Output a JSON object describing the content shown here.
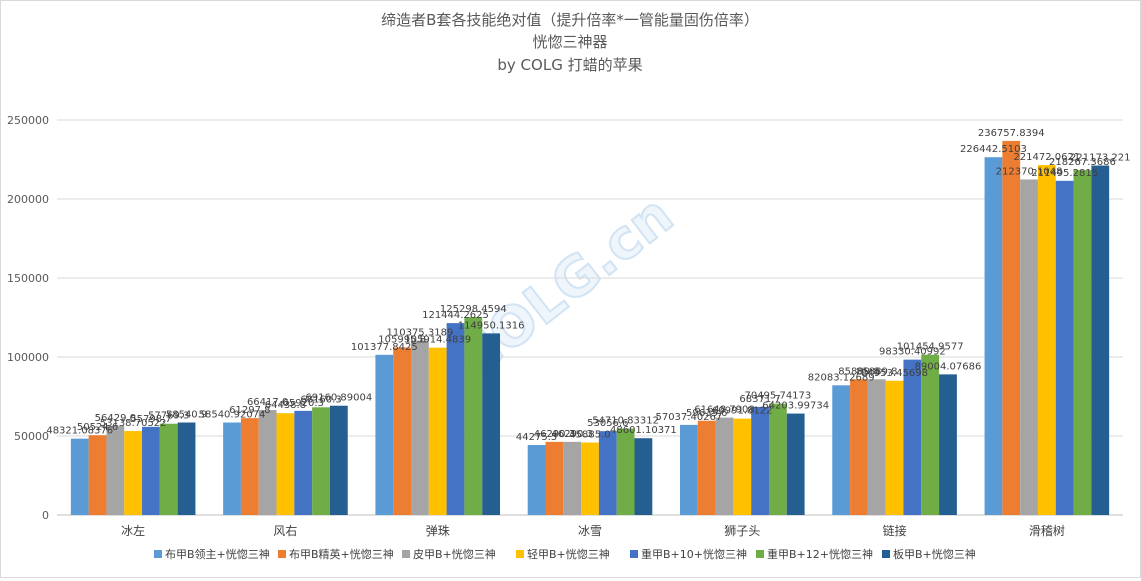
{
  "chart_data": {
    "type": "bar",
    "title_lines": [
      "缔造者B套各技能绝对值（提升倍率*一管能量固伤倍率）",
      "恍惚三神器",
      "by COLG 打蜡的苹果"
    ],
    "categories": [
      "冰左",
      "风右",
      "弹珠",
      "冰雪",
      "狮子头",
      "链接",
      "滑稽树"
    ],
    "ylim": [
      0,
      250000
    ],
    "yticks": [
      0,
      50000,
      100000,
      150000,
      200000,
      250000
    ],
    "ytick_labels": [
      "0",
      "50000",
      "100000",
      "150000",
      "200000",
      "250000"
    ],
    "grid": true,
    "legend_position": "bottom",
    "series": [
      {
        "name": "布甲B领主+恍惚三神",
        "color": "#5b9bd5",
        "values": [
          48321.0,
          58540.9207,
          101377.8425,
          44275.5,
          57037.40267,
          82083.12689,
          226442.5103
        ],
        "labels": [
          "48321.08376",
          "58540.92074",
          "101377.8425",
          "44275.5",
          "57037.40267",
          "82083.12689",
          "226442.5103"
        ]
      },
      {
        "name": "布甲B精英+恍惚三神",
        "color": "#ed7d31",
        "values": [
          50524.6,
          61297.8,
          105995.8,
          46290.3,
          59635.6,
          85889.8,
          236757.8394
        ],
        "labels": [
          "50524.6",
          "61297.8",
          "105995.8",
          "46290.3",
          "59635.6",
          "85889.8",
          "236757.8394"
        ]
      },
      {
        "name": "皮甲B+恍惚三神",
        "color": "#a5a5a5",
        "values": [
          56429.0,
          66417.0,
          110375.3189,
          46290.3,
          61648.7908,
          85889.8,
          212370.1048
        ],
        "labels": [
          "56429.0",
          "66417.0",
          "110375.3189",
          "46290.3",
          "61648.7908",
          "85889.8",
          "212370.1048"
        ]
      },
      {
        "name": "轻甲B+恍惚三神",
        "color": "#ffc000",
        "values": [
          53138.70522,
          64438.8,
          105914.4839,
          45885.0,
          60991.8122,
          84953.45698,
          221472.0621
        ],
        "labels": [
          "53138.70522",
          "64438.8",
          "105914.4839",
          "45885.0",
          "60991.8122",
          "84953.45698",
          "221472.0621"
        ]
      },
      {
        "name": "重甲B+10+恍惚三神",
        "color": "#4472c4",
        "values": [
          55798.7,
          65920.3,
          121444.2625,
          53056.6,
          68371.7,
          98330.40992,
          211495.2815
        ],
        "labels": [
          "55798.7",
          "65920.3",
          "121444.2625",
          "53056.6",
          "68371.7",
          "98330.40992",
          "211495.2815"
        ]
      },
      {
        "name": "重甲B+12+恍惚三神",
        "color": "#70ad47",
        "values": [
          57769.3,
          68160.3,
          125298.4594,
          54710.83312,
          70495.74173,
          101454.9577,
          218267.3686
        ],
        "labels": [
          "57769.3",
          "68160.3",
          "125298.4594",
          "54710.83312",
          "70495.74173",
          "101454.9577",
          "218267.3686"
        ]
      },
      {
        "name": "板甲B+恍惚三神",
        "color": "#255e91",
        "values": [
          58540.9,
          69160.89004,
          114950.1316,
          48601.10371,
          64203.99734,
          89004.07686,
          221173.221
        ],
        "labels": [
          "58540.9",
          "69160.89004",
          "114950.1316",
          "48601.10371",
          "64203.99734",
          "89004.07686",
          "221173.221"
        ]
      }
    ]
  }
}
